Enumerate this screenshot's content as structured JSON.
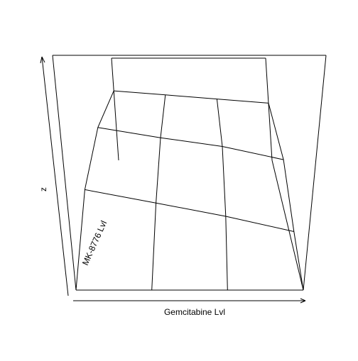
{
  "chart_data": {
    "type": "surface",
    "title": "",
    "xlabel": "Gemcitabine Lvl",
    "ylabel": "MK-8776 Lvl",
    "zlabel": "z",
    "axes": {
      "ticks": false,
      "box": true
    },
    "x": [
      1,
      2,
      3,
      4
    ],
    "y": [
      1,
      2,
      3,
      4
    ],
    "z": [
      [
        0.0,
        0.0,
        0.0,
        0.0
      ],
      [
        0.3,
        0.23,
        0.16,
        0.08
      ],
      [
        0.52,
        0.45,
        0.39,
        0.3
      ],
      [
        0.68,
        0.64,
        0.6,
        0.56
      ]
    ],
    "zlim": [
      0,
      1
    ]
  }
}
